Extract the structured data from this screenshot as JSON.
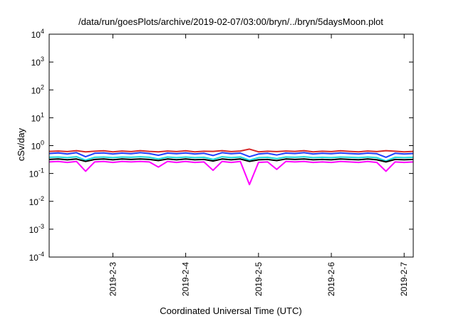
{
  "chart_data": {
    "type": "line",
    "title": "/data/run/goesPlots/archive/2019-02-07/03:00/bryn/../bryn/5daysMoon.plot",
    "xlabel": "Coordinated Universal Time (UTC)",
    "ylabel": "cSv/day",
    "yscale": "log",
    "ylim": [
      0.0001,
      10000
    ],
    "xlim": [
      "2019-02-02T03:00",
      "2019-02-07T03:00"
    ],
    "y_ticks": [
      {
        "base": "10",
        "exp": "-4",
        "value": 0.0001
      },
      {
        "base": "10",
        "exp": "-3",
        "value": 0.001
      },
      {
        "base": "10",
        "exp": "-2",
        "value": 0.01
      },
      {
        "base": "10",
        "exp": "-1",
        "value": 0.1
      },
      {
        "base": "10",
        "exp": "0",
        "value": 1
      },
      {
        "base": "10",
        "exp": "1",
        "value": 10
      },
      {
        "base": "10",
        "exp": "2",
        "value": 100
      },
      {
        "base": "10",
        "exp": "3",
        "value": 1000
      },
      {
        "base": "10",
        "exp": "4",
        "value": 10000
      }
    ],
    "x_ticks": [
      {
        "label": "2019-2-3",
        "value": "2019-02-03T00:00"
      },
      {
        "label": "2019-2-4",
        "value": "2019-02-04T00:00"
      },
      {
        "label": "2019-2-5",
        "value": "2019-02-05T00:00"
      },
      {
        "label": "2019-2-6",
        "value": "2019-02-06T00:00"
      },
      {
        "label": "2019-2-7",
        "value": "2019-02-07T00:00"
      }
    ],
    "grid": false,
    "series": [
      {
        "color": "#d62728",
        "values": [
          [
            "2019-02-02T03:00",
            0.62
          ],
          [
            "2019-02-02T06:00",
            0.64
          ],
          [
            "2019-02-02T09:00",
            0.61
          ],
          [
            "2019-02-02T12:00",
            0.66
          ],
          [
            "2019-02-02T15:00",
            0.6
          ],
          [
            "2019-02-02T18:00",
            0.63
          ],
          [
            "2019-02-02T21:00",
            0.65
          ],
          [
            "2019-02-03T00:00",
            0.6
          ],
          [
            "2019-02-03T03:00",
            0.64
          ],
          [
            "2019-02-03T06:00",
            0.61
          ],
          [
            "2019-02-03T09:00",
            0.66
          ],
          [
            "2019-02-03T12:00",
            0.62
          ],
          [
            "2019-02-03T15:00",
            0.6
          ],
          [
            "2019-02-03T18:00",
            0.64
          ],
          [
            "2019-02-03T21:00",
            0.61
          ],
          [
            "2019-02-04T00:00",
            0.65
          ],
          [
            "2019-02-04T03:00",
            0.6
          ],
          [
            "2019-02-04T06:00",
            0.63
          ],
          [
            "2019-02-04T09:00",
            0.62
          ],
          [
            "2019-02-04T12:00",
            0.66
          ],
          [
            "2019-02-04T15:00",
            0.61
          ],
          [
            "2019-02-04T18:00",
            0.64
          ],
          [
            "2019-02-04T21:00",
            0.75
          ],
          [
            "2019-02-05T00:00",
            0.6
          ],
          [
            "2019-02-05T03:00",
            0.63
          ],
          [
            "2019-02-05T06:00",
            0.61
          ],
          [
            "2019-02-05T09:00",
            0.64
          ],
          [
            "2019-02-05T12:00",
            0.62
          ],
          [
            "2019-02-05T15:00",
            0.66
          ],
          [
            "2019-02-05T18:00",
            0.6
          ],
          [
            "2019-02-05T21:00",
            0.63
          ],
          [
            "2019-02-06T00:00",
            0.61
          ],
          [
            "2019-02-06T03:00",
            0.65
          ],
          [
            "2019-02-06T06:00",
            0.62
          ],
          [
            "2019-02-06T09:00",
            0.6
          ],
          [
            "2019-02-06T12:00",
            0.64
          ],
          [
            "2019-02-06T15:00",
            0.61
          ],
          [
            "2019-02-06T18:00",
            0.66
          ],
          [
            "2019-02-06T21:00",
            0.63
          ],
          [
            "2019-02-07T00:00",
            0.6
          ],
          [
            "2019-02-07T03:00",
            0.62
          ]
        ]
      },
      {
        "color": "#1f3fff",
        "values": [
          [
            "2019-02-02T03:00",
            0.52
          ],
          [
            "2019-02-02T06:00",
            0.55
          ],
          [
            "2019-02-02T09:00",
            0.5
          ],
          [
            "2019-02-02T12:00",
            0.56
          ],
          [
            "2019-02-02T15:00",
            0.4
          ],
          [
            "2019-02-02T18:00",
            0.53
          ],
          [
            "2019-02-02T21:00",
            0.55
          ],
          [
            "2019-02-03T00:00",
            0.5
          ],
          [
            "2019-02-03T03:00",
            0.54
          ],
          [
            "2019-02-03T06:00",
            0.51
          ],
          [
            "2019-02-03T09:00",
            0.56
          ],
          [
            "2019-02-03T12:00",
            0.52
          ],
          [
            "2019-02-03T15:00",
            0.45
          ],
          [
            "2019-02-03T18:00",
            0.54
          ],
          [
            "2019-02-03T21:00",
            0.51
          ],
          [
            "2019-02-04T00:00",
            0.55
          ],
          [
            "2019-02-04T03:00",
            0.5
          ],
          [
            "2019-02-04T06:00",
            0.53
          ],
          [
            "2019-02-04T09:00",
            0.44
          ],
          [
            "2019-02-04T12:00",
            0.56
          ],
          [
            "2019-02-04T15:00",
            0.51
          ],
          [
            "2019-02-04T18:00",
            0.54
          ],
          [
            "2019-02-04T21:00",
            0.4
          ],
          [
            "2019-02-05T00:00",
            0.5
          ],
          [
            "2019-02-05T03:00",
            0.53
          ],
          [
            "2019-02-05T06:00",
            0.46
          ],
          [
            "2019-02-05T09:00",
            0.54
          ],
          [
            "2019-02-05T12:00",
            0.52
          ],
          [
            "2019-02-05T15:00",
            0.56
          ],
          [
            "2019-02-05T18:00",
            0.5
          ],
          [
            "2019-02-05T21:00",
            0.53
          ],
          [
            "2019-02-06T00:00",
            0.51
          ],
          [
            "2019-02-06T03:00",
            0.55
          ],
          [
            "2019-02-06T06:00",
            0.52
          ],
          [
            "2019-02-06T09:00",
            0.5
          ],
          [
            "2019-02-06T12:00",
            0.54
          ],
          [
            "2019-02-06T15:00",
            0.51
          ],
          [
            "2019-02-06T18:00",
            0.38
          ],
          [
            "2019-02-06T21:00",
            0.53
          ],
          [
            "2019-02-07T00:00",
            0.5
          ],
          [
            "2019-02-07T03:00",
            0.52
          ]
        ]
      },
      {
        "color": "#17d8d8",
        "values": [
          [
            "2019-02-02T03:00",
            0.38
          ],
          [
            "2019-02-02T06:00",
            0.39
          ],
          [
            "2019-02-02T09:00",
            0.37
          ],
          [
            "2019-02-02T12:00",
            0.4
          ],
          [
            "2019-02-02T15:00",
            0.3
          ],
          [
            "2019-02-02T18:00",
            0.38
          ],
          [
            "2019-02-02T21:00",
            0.39
          ],
          [
            "2019-02-03T00:00",
            0.37
          ],
          [
            "2019-02-03T03:00",
            0.39
          ],
          [
            "2019-02-03T06:00",
            0.38
          ],
          [
            "2019-02-03T09:00",
            0.4
          ],
          [
            "2019-02-03T12:00",
            0.38
          ],
          [
            "2019-02-03T15:00",
            0.33
          ],
          [
            "2019-02-03T18:00",
            0.39
          ],
          [
            "2019-02-03T21:00",
            0.37
          ],
          [
            "2019-02-04T00:00",
            0.39
          ],
          [
            "2019-02-04T03:00",
            0.37
          ],
          [
            "2019-02-04T06:00",
            0.38
          ],
          [
            "2019-02-04T09:00",
            0.32
          ],
          [
            "2019-02-04T12:00",
            0.4
          ],
          [
            "2019-02-04T15:00",
            0.37
          ],
          [
            "2019-02-04T18:00",
            0.39
          ],
          [
            "2019-02-04T21:00",
            0.3
          ],
          [
            "2019-02-05T00:00",
            0.37
          ],
          [
            "2019-02-05T03:00",
            0.38
          ],
          [
            "2019-02-05T06:00",
            0.34
          ],
          [
            "2019-02-05T09:00",
            0.39
          ],
          [
            "2019-02-05T12:00",
            0.38
          ],
          [
            "2019-02-05T15:00",
            0.4
          ],
          [
            "2019-02-05T18:00",
            0.37
          ],
          [
            "2019-02-05T21:00",
            0.38
          ],
          [
            "2019-02-06T00:00",
            0.37
          ],
          [
            "2019-02-06T03:00",
            0.39
          ],
          [
            "2019-02-06T06:00",
            0.38
          ],
          [
            "2019-02-06T09:00",
            0.37
          ],
          [
            "2019-02-06T12:00",
            0.39
          ],
          [
            "2019-02-06T15:00",
            0.37
          ],
          [
            "2019-02-06T18:00",
            0.28
          ],
          [
            "2019-02-06T21:00",
            0.38
          ],
          [
            "2019-02-07T00:00",
            0.37
          ],
          [
            "2019-02-07T03:00",
            0.38
          ]
        ]
      },
      {
        "color": "#000000",
        "values": [
          [
            "2019-02-02T03:00",
            0.32
          ],
          [
            "2019-02-02T06:00",
            0.33
          ],
          [
            "2019-02-02T09:00",
            0.31
          ],
          [
            "2019-02-02T12:00",
            0.33
          ],
          [
            "2019-02-02T15:00",
            0.27
          ],
          [
            "2019-02-02T18:00",
            0.32
          ],
          [
            "2019-02-02T21:00",
            0.33
          ],
          [
            "2019-02-03T00:00",
            0.31
          ],
          [
            "2019-02-03T03:00",
            0.33
          ],
          [
            "2019-02-03T06:00",
            0.32
          ],
          [
            "2019-02-03T09:00",
            0.33
          ],
          [
            "2019-02-03T12:00",
            0.32
          ],
          [
            "2019-02-03T15:00",
            0.29
          ],
          [
            "2019-02-03T18:00",
            0.33
          ],
          [
            "2019-02-03T21:00",
            0.31
          ],
          [
            "2019-02-04T00:00",
            0.33
          ],
          [
            "2019-02-04T03:00",
            0.31
          ],
          [
            "2019-02-04T06:00",
            0.32
          ],
          [
            "2019-02-04T09:00",
            0.28
          ],
          [
            "2019-02-04T12:00",
            0.33
          ],
          [
            "2019-02-04T15:00",
            0.31
          ],
          [
            "2019-02-04T18:00",
            0.33
          ],
          [
            "2019-02-04T21:00",
            0.27
          ],
          [
            "2019-02-05T00:00",
            0.31
          ],
          [
            "2019-02-05T03:00",
            0.32
          ],
          [
            "2019-02-05T06:00",
            0.29
          ],
          [
            "2019-02-05T09:00",
            0.33
          ],
          [
            "2019-02-05T12:00",
            0.32
          ],
          [
            "2019-02-05T15:00",
            0.33
          ],
          [
            "2019-02-05T18:00",
            0.31
          ],
          [
            "2019-02-05T21:00",
            0.32
          ],
          [
            "2019-02-06T00:00",
            0.31
          ],
          [
            "2019-02-06T03:00",
            0.33
          ],
          [
            "2019-02-06T06:00",
            0.32
          ],
          [
            "2019-02-06T09:00",
            0.31
          ],
          [
            "2019-02-06T12:00",
            0.33
          ],
          [
            "2019-02-06T15:00",
            0.31
          ],
          [
            "2019-02-06T18:00",
            0.26
          ],
          [
            "2019-02-06T21:00",
            0.32
          ],
          [
            "2019-02-07T00:00",
            0.31
          ],
          [
            "2019-02-07T03:00",
            0.32
          ]
        ]
      },
      {
        "color": "#ff00ff",
        "values": [
          [
            "2019-02-02T03:00",
            0.26
          ],
          [
            "2019-02-02T06:00",
            0.27
          ],
          [
            "2019-02-02T09:00",
            0.25
          ],
          [
            "2019-02-02T12:00",
            0.27
          ],
          [
            "2019-02-02T15:00",
            0.12
          ],
          [
            "2019-02-02T18:00",
            0.26
          ],
          [
            "2019-02-02T21:00",
            0.27
          ],
          [
            "2019-02-03T00:00",
            0.25
          ],
          [
            "2019-02-03T03:00",
            0.27
          ],
          [
            "2019-02-03T06:00",
            0.26
          ],
          [
            "2019-02-03T09:00",
            0.27
          ],
          [
            "2019-02-03T12:00",
            0.26
          ],
          [
            "2019-02-03T15:00",
            0.17
          ],
          [
            "2019-02-03T18:00",
            0.27
          ],
          [
            "2019-02-03T21:00",
            0.25
          ],
          [
            "2019-02-04T00:00",
            0.27
          ],
          [
            "2019-02-04T03:00",
            0.25
          ],
          [
            "2019-02-04T06:00",
            0.26
          ],
          [
            "2019-02-04T09:00",
            0.13
          ],
          [
            "2019-02-04T12:00",
            0.27
          ],
          [
            "2019-02-04T15:00",
            0.25
          ],
          [
            "2019-02-04T18:00",
            0.27
          ],
          [
            "2019-02-04T21:00",
            0.04
          ],
          [
            "2019-02-05T00:00",
            0.25
          ],
          [
            "2019-02-05T03:00",
            0.26
          ],
          [
            "2019-02-05T06:00",
            0.14
          ],
          [
            "2019-02-05T09:00",
            0.27
          ],
          [
            "2019-02-05T12:00",
            0.26
          ],
          [
            "2019-02-05T15:00",
            0.27
          ],
          [
            "2019-02-05T18:00",
            0.25
          ],
          [
            "2019-02-05T21:00",
            0.26
          ],
          [
            "2019-02-06T00:00",
            0.25
          ],
          [
            "2019-02-06T03:00",
            0.27
          ],
          [
            "2019-02-06T06:00",
            0.26
          ],
          [
            "2019-02-06T09:00",
            0.25
          ],
          [
            "2019-02-06T12:00",
            0.27
          ],
          [
            "2019-02-06T15:00",
            0.25
          ],
          [
            "2019-02-06T18:00",
            0.12
          ],
          [
            "2019-02-06T21:00",
            0.26
          ],
          [
            "2019-02-07T00:00",
            0.25
          ],
          [
            "2019-02-07T03:00",
            0.26
          ]
        ]
      }
    ]
  }
}
